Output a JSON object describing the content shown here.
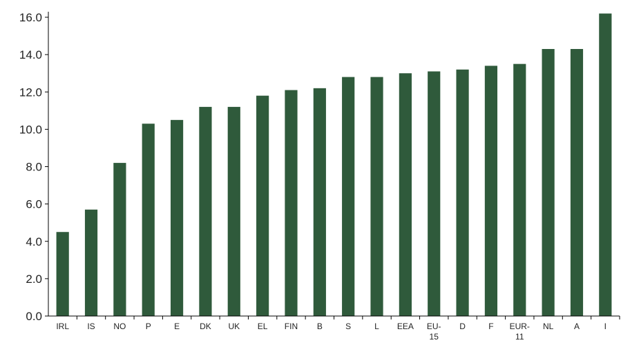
{
  "chart_data": {
    "type": "bar",
    "title": "",
    "xlabel": "",
    "ylabel": "",
    "ylim": [
      0,
      16
    ],
    "yticks": [
      "0.0",
      "2.0",
      "4.0",
      "6.0",
      "8.0",
      "10.0",
      "12.0",
      "14.0",
      "16.0"
    ],
    "categories": [
      [
        "IRL"
      ],
      [
        "IS"
      ],
      [
        "NO"
      ],
      [
        "P"
      ],
      [
        "E"
      ],
      [
        "DK"
      ],
      [
        "UK"
      ],
      [
        "EL"
      ],
      [
        "FIN"
      ],
      [
        "B"
      ],
      [
        "S"
      ],
      [
        "L"
      ],
      [
        "EEA"
      ],
      [
        "EU-",
        "15"
      ],
      [
        "D"
      ],
      [
        "F"
      ],
      [
        "EUR-",
        "11"
      ],
      [
        "NL"
      ],
      [
        "A"
      ],
      [
        "I"
      ]
    ],
    "values": [
      4.5,
      5.7,
      8.2,
      10.3,
      10.5,
      11.2,
      11.2,
      11.8,
      12.1,
      12.2,
      12.8,
      12.8,
      13.0,
      13.1,
      13.2,
      13.4,
      13.5,
      14.3,
      14.3,
      16.2
    ],
    "grid": false,
    "legend": "none",
    "colors": {
      "bar": "#2f5a3b",
      "axis": "#000000"
    }
  }
}
